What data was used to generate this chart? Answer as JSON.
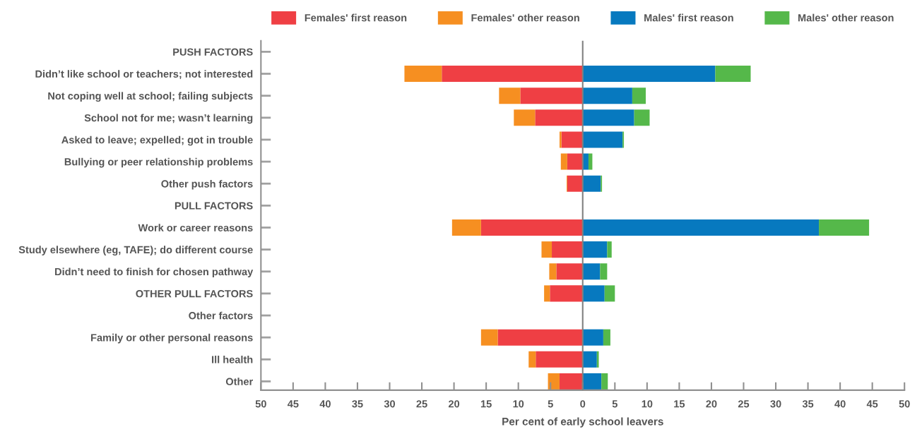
{
  "chart_data": {
    "type": "bar",
    "orientation": "horizontal",
    "stacked": true,
    "categories": [
      "PUSH FACTORS",
      "Didn’t like school or teachers; not interested",
      "Not coping well at school; failing subjects",
      "School not for me; wasn’t learning",
      "Asked to leave; expelled; got in trouble",
      "Bullying or peer relationship problems",
      "Other push factors",
      "PULL FACTORS",
      "Work or career reasons",
      "Study elsewhere (eg, TAFE); do different course",
      "Didn’t need to finish for chosen pathway",
      "OTHER PULL FACTORS",
      "Other factors",
      "Family or other personal reasons",
      "Ill health",
      "Other"
    ],
    "series": [
      {
        "name": "Females' first reason",
        "color": "#ef3f44",
        "values": [
          null,
          -21.9,
          -9.7,
          -7.4,
          -3.3,
          -2.4,
          -2.4,
          null,
          -15.8,
          -4.8,
          -4.1,
          -5.1,
          null,
          -13.2,
          -7.3,
          -3.6
        ]
      },
      {
        "name": "Females' other reason",
        "color": "#f68f21",
        "values": [
          null,
          -5.8,
          -3.3,
          -3.3,
          -0.3,
          -1.0,
          -0.1,
          null,
          -4.5,
          -1.6,
          -1.1,
          -0.9,
          null,
          -2.6,
          -1.1,
          -1.8
        ]
      },
      {
        "name": "Males' first reason",
        "color": "#0779bf",
        "values": [
          null,
          20.6,
          7.7,
          8.0,
          6.2,
          0.9,
          2.8,
          null,
          36.7,
          3.8,
          2.7,
          3.4,
          null,
          3.2,
          2.2,
          2.9
        ]
      },
      {
        "name": "Males' other reason",
        "color": "#55b84a",
        "values": [
          null,
          5.5,
          2.1,
          2.4,
          0.2,
          0.6,
          0.2,
          null,
          7.8,
          0.7,
          1.1,
          1.6,
          null,
          1.1,
          0.3,
          1.0
        ]
      }
    ],
    "xlim": [
      -50,
      50
    ],
    "xticks": [
      {
        "value": -50,
        "label": "50"
      },
      {
        "value": -45,
        "label": "45"
      },
      {
        "value": -40,
        "label": "40"
      },
      {
        "value": -35,
        "label": "35"
      },
      {
        "value": -30,
        "label": "30"
      },
      {
        "value": -25,
        "label": "25"
      },
      {
        "value": -20,
        "label": "20"
      },
      {
        "value": -15,
        "label": "15"
      },
      {
        "value": -10,
        "label": "10"
      },
      {
        "value": -5,
        "label": "5"
      },
      0,
      5,
      10,
      15,
      20,
      25,
      30,
      35,
      40,
      45,
      50
    ],
    "xlabel": "Per cent of early school leavers",
    "ref_lines": [
      {
        "axis": "x",
        "value": 0,
        "color": "#808080"
      }
    ],
    "legend": "top",
    "grid": false
  }
}
